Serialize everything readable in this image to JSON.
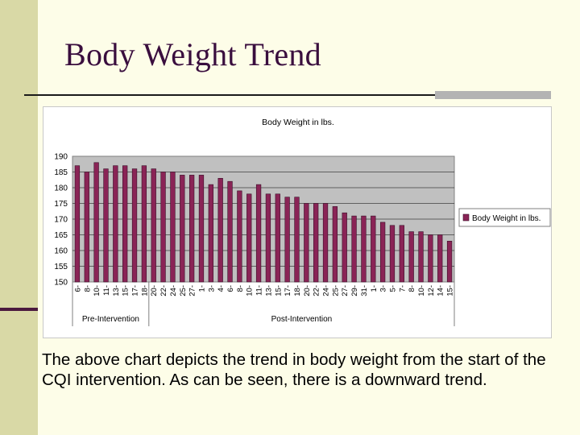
{
  "slide": {
    "title": "Body Weight Trend",
    "caption": "The above chart depicts the trend in body weight from the start of the CQI intervention.  As can be seen, there is a downward trend."
  },
  "colors": {
    "background": "#fdfde8",
    "sidebar": "#d9d9a6",
    "title": "#3a0e3e",
    "plot_area": "#c0c0c0",
    "bar_fill": "#8a2456",
    "bar_stroke": "#3a0e28"
  },
  "chart_data": {
    "type": "bar",
    "title": "Body Weight in lbs.",
    "xlabel": "",
    "ylabel": "",
    "ylim": [
      150,
      190
    ],
    "yticks": [
      150,
      155,
      160,
      165,
      170,
      175,
      180,
      185,
      190
    ],
    "grid": true,
    "legend": {
      "position": "right",
      "entries": [
        "Body Weight in lbs."
      ]
    },
    "categories": [
      "6-",
      "8-",
      "10-",
      "11-",
      "13-",
      "15-",
      "17-",
      "18-",
      "20-",
      "22-",
      "24-",
      "25-",
      "27-",
      "1-",
      "3-",
      "4-",
      "6-",
      "8-",
      "10-",
      "11-",
      "13-",
      "15-",
      "17-",
      "18-",
      "20-",
      "22-",
      "24-",
      "25-",
      "27-",
      "29-",
      "31-",
      "1-",
      "3-",
      "5-",
      "7-",
      "8-",
      "10-",
      "12-",
      "14-",
      "15-"
    ],
    "series": [
      {
        "name": "Body Weight in lbs.",
        "values": [
          187,
          185,
          188,
          186,
          187,
          187,
          186,
          187,
          186,
          185,
          185,
          184,
          184,
          184,
          181,
          183,
          182,
          179,
          178,
          181,
          178,
          178,
          177,
          177,
          175,
          175,
          175,
          174,
          172,
          171,
          171,
          171,
          169,
          168,
          168,
          166,
          166,
          165,
          165,
          163
        ]
      }
    ],
    "groups": [
      {
        "label": "Pre-Intervention",
        "start": 0,
        "end": 7
      },
      {
        "label": "Post-Intervention",
        "start": 8,
        "end": 39
      }
    ]
  }
}
